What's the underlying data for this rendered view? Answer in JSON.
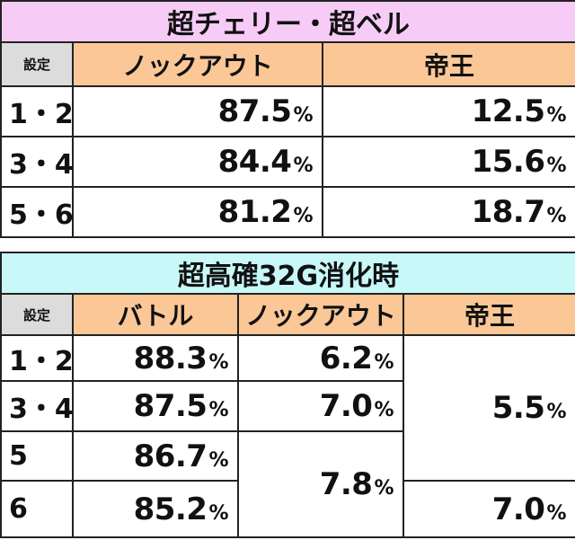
{
  "table1": {
    "title": "超チェリー・超ベル",
    "setting_label": "設定",
    "headers": [
      "ノックアウト",
      "帝王"
    ],
    "rows": [
      {
        "setting": "1・2",
        "knockout": "87.5",
        "teio": "12.5"
      },
      {
        "setting": "3・4",
        "knockout": "84.4",
        "teio": "15.6"
      },
      {
        "setting": "5・6",
        "knockout": "81.2",
        "teio": "18.7"
      }
    ]
  },
  "table2": {
    "title": "超高確32G消化時",
    "setting_label": "設定",
    "headers": [
      "バトル",
      "ノックアウト",
      "帝王"
    ],
    "rows": [
      {
        "setting": "1・2",
        "battle": "88.3",
        "knockout": "6.2"
      },
      {
        "setting": "3・4",
        "battle": "87.5",
        "knockout": "7.0"
      },
      {
        "setting": "5",
        "battle": "86.7"
      },
      {
        "setting": "6",
        "battle": "85.2"
      }
    ],
    "knockout_merged_5_6": "7.8",
    "teio_merged_1_5": "5.5",
    "teio_6": "7.0"
  },
  "percent_sign": "%",
  "colors": {
    "title1_bg": "#f6ccf6",
    "title2_bg": "#c8f8f8",
    "header_bg": "#fbc797",
    "setting_bg": "#dcdcdc"
  }
}
